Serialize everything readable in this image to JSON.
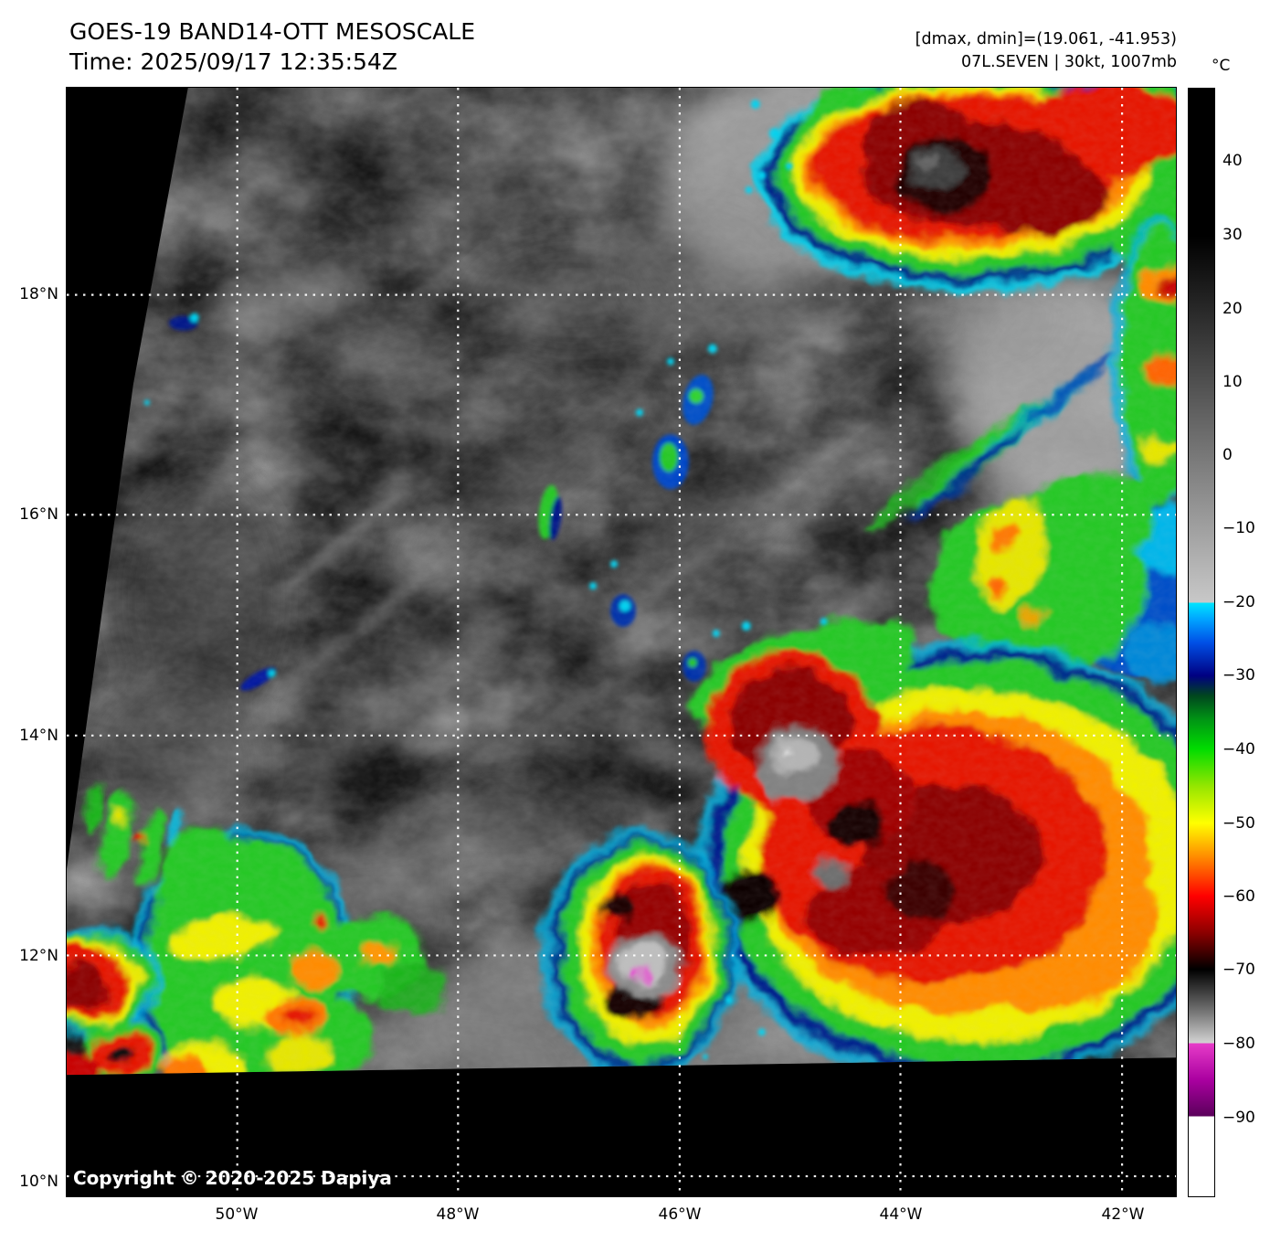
{
  "header": {
    "title": "GOES-19 BAND14-OTT MESOSCALE",
    "time_line": "Time: 2025/09/17 12:35:54Z",
    "dmax_dmin": "[dmax, dmin]=(19.061, -41.953)",
    "storm_info": "07L.SEVEN | 30kt, 1007mb"
  },
  "map": {
    "copyright": "Copyright © 2020-2025 Dapiya",
    "lat_labels": [
      "18°N",
      "16°N",
      "14°N",
      "12°N",
      "10°N"
    ],
    "lon_labels": [
      "50°W",
      "48°W",
      "46°W",
      "44°W",
      "42°W"
    ]
  },
  "colorbar": {
    "unit": "°C",
    "ticks": [
      {
        "label": "40",
        "pct": 6.6
      },
      {
        "label": "30",
        "pct": 13.3
      },
      {
        "label": "20",
        "pct": 19.9
      },
      {
        "label": "10",
        "pct": 26.5
      },
      {
        "label": "0",
        "pct": 33.1
      },
      {
        "label": "−10",
        "pct": 39.7
      },
      {
        "label": "−20",
        "pct": 46.4
      },
      {
        "label": "−30",
        "pct": 53.0
      },
      {
        "label": "−40",
        "pct": 59.6
      },
      {
        "label": "−50",
        "pct": 66.3
      },
      {
        "label": "−60",
        "pct": 72.9
      },
      {
        "label": "−70",
        "pct": 79.5
      },
      {
        "label": "−80",
        "pct": 86.2
      },
      {
        "label": "−90",
        "pct": 92.8
      }
    ],
    "gradient_stops": [
      {
        "pct": 0,
        "color": "#000000"
      },
      {
        "pct": 13.3,
        "color": "#000000"
      },
      {
        "pct": 46.4,
        "color": "#c8c8c8"
      },
      {
        "pct": 46.4,
        "color": "#00e6ff"
      },
      {
        "pct": 48.0,
        "color": "#00a0ff"
      },
      {
        "pct": 50.0,
        "color": "#0050e6"
      },
      {
        "pct": 53.0,
        "color": "#000082"
      },
      {
        "pct": 54.8,
        "color": "#00461e"
      },
      {
        "pct": 57.0,
        "color": "#009614"
      },
      {
        "pct": 59.6,
        "color": "#00dc00"
      },
      {
        "pct": 63.0,
        "color": "#96e600"
      },
      {
        "pct": 66.3,
        "color": "#ffff00"
      },
      {
        "pct": 69.6,
        "color": "#ff8200"
      },
      {
        "pct": 72.9,
        "color": "#ff0000"
      },
      {
        "pct": 76.2,
        "color": "#8c0000"
      },
      {
        "pct": 79.5,
        "color": "#000000"
      },
      {
        "pct": 83.0,
        "color": "#6a6a6a"
      },
      {
        "pct": 86.2,
        "color": "#d4d4d4"
      },
      {
        "pct": 86.2,
        "color": "#e63cc8"
      },
      {
        "pct": 89.5,
        "color": "#aa00a0"
      },
      {
        "pct": 92.8,
        "color": "#5a005a"
      },
      {
        "pct": 92.8,
        "color": "#ffffff"
      },
      {
        "pct": 100,
        "color": "#ffffff"
      }
    ]
  }
}
